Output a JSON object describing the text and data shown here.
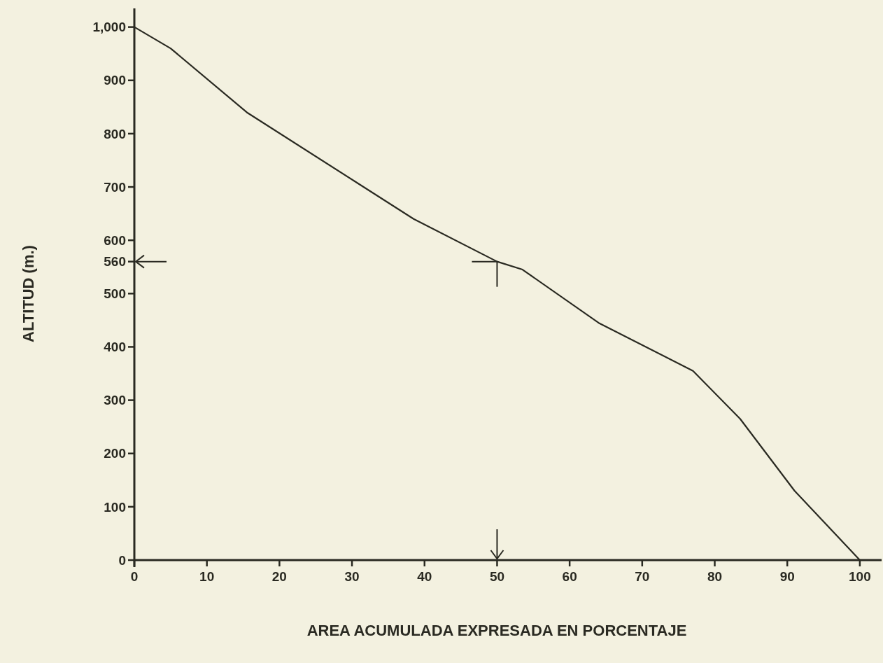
{
  "chart_data": {
    "type": "line",
    "xlabel": "AREA ACUMULADA EXPRESADA EN PORCENTAJE",
    "ylabel": "ALTITUD (m.)",
    "x": [
      0,
      5,
      15.5,
      38.5,
      50,
      53.5,
      64,
      77,
      83.5,
      91,
      100
    ],
    "series": [
      {
        "color": "#2a2a22",
        "values": [
          1000,
          960,
          840,
          640,
          560,
          545,
          445,
          355,
          265,
          130,
          0
        ]
      }
    ],
    "xlim": [
      0,
      103
    ],
    "xticks": [
      0,
      10,
      20,
      30,
      40,
      50,
      60,
      70,
      80,
      90,
      100
    ],
    "ylim": [
      0,
      1035
    ],
    "yticks": [
      0,
      100,
      200,
      300,
      400,
      500,
      {
        "value": 560,
        "label": "560"
      },
      600,
      700,
      800,
      900,
      {
        "value": 1000,
        "label": "1,000"
      }
    ],
    "grid": false,
    "marker": "none",
    "line_style": "solid"
  }
}
